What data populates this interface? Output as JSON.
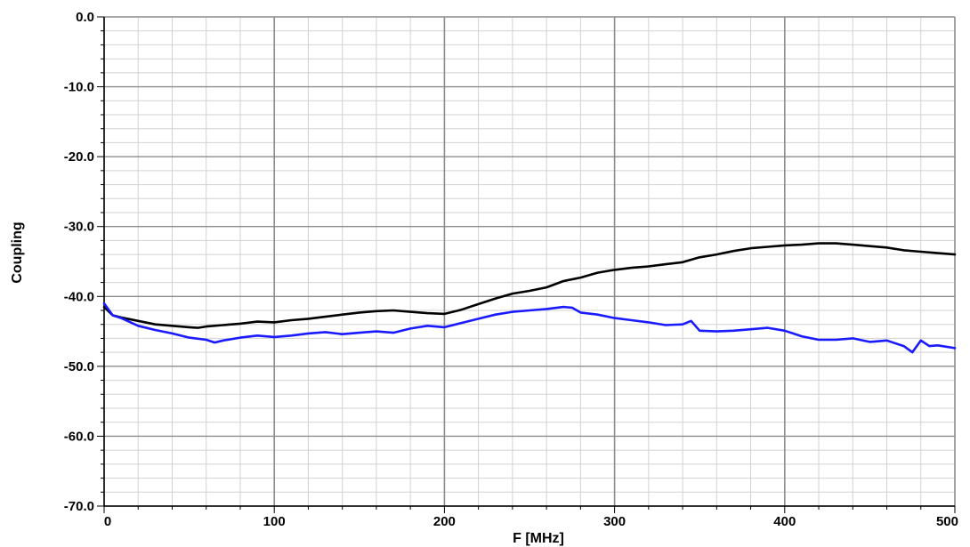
{
  "chart_data": {
    "type": "line",
    "title": "",
    "xlabel": "F [MHz]",
    "ylabel": "Coupling",
    "xlim": [
      0,
      500
    ],
    "ylim": [
      -70,
      0
    ],
    "x_ticks": [
      "0",
      "100",
      "200",
      "300",
      "400",
      "500"
    ],
    "y_ticks": [
      "0.0",
      "-10.0",
      "-20.0",
      "-30.0",
      "-40.0",
      "-50.0",
      "-60.0",
      "-70.0"
    ],
    "grid": true,
    "legend": "none",
    "series": [
      {
        "color": "#000000",
        "x": [
          0,
          5,
          10,
          20,
          30,
          40,
          50,
          55,
          60,
          70,
          80,
          90,
          100,
          110,
          120,
          130,
          140,
          150,
          160,
          170,
          180,
          190,
          200,
          210,
          220,
          230,
          240,
          250,
          260,
          270,
          280,
          290,
          300,
          310,
          320,
          330,
          340,
          350,
          360,
          370,
          380,
          390,
          400,
          410,
          420,
          430,
          440,
          450,
          460,
          470,
          480,
          490,
          500
        ],
        "y": [
          -41.5,
          -42.7,
          -43.0,
          -43.5,
          -44.0,
          -44.2,
          -44.4,
          -44.5,
          -44.3,
          -44.1,
          -43.9,
          -43.6,
          -43.7,
          -43.4,
          -43.2,
          -42.9,
          -42.6,
          -42.3,
          -42.1,
          -42.0,
          -42.2,
          -42.4,
          -42.5,
          -41.9,
          -41.1,
          -40.3,
          -39.6,
          -39.2,
          -38.7,
          -37.8,
          -37.3,
          -36.6,
          -36.2,
          -35.9,
          -35.7,
          -35.4,
          -35.1,
          -34.4,
          -34.0,
          -33.5,
          -33.1,
          -32.9,
          -32.7,
          -32.6,
          -32.4,
          -32.4,
          -32.6,
          -32.8,
          -33.0,
          -33.4,
          -33.6,
          -33.8,
          -34.0
        ]
      },
      {
        "color": "#1a1aff",
        "x": [
          0,
          5,
          10,
          20,
          30,
          40,
          50,
          60,
          65,
          70,
          80,
          90,
          100,
          110,
          120,
          130,
          140,
          150,
          160,
          170,
          180,
          190,
          200,
          210,
          220,
          230,
          240,
          250,
          260,
          270,
          275,
          280,
          290,
          300,
          310,
          320,
          330,
          340,
          345,
          350,
          360,
          370,
          380,
          390,
          400,
          410,
          420,
          430,
          440,
          450,
          460,
          470,
          475,
          480,
          485,
          490,
          500
        ],
        "y": [
          -41.0,
          -42.7,
          -43.1,
          -44.2,
          -44.8,
          -45.3,
          -45.9,
          -46.2,
          -46.6,
          -46.3,
          -45.9,
          -45.6,
          -45.8,
          -45.6,
          -45.3,
          -45.1,
          -45.4,
          -45.2,
          -45.0,
          -45.2,
          -44.6,
          -44.2,
          -44.4,
          -43.8,
          -43.2,
          -42.6,
          -42.2,
          -42.0,
          -41.8,
          -41.5,
          -41.6,
          -42.3,
          -42.6,
          -43.1,
          -43.4,
          -43.7,
          -44.1,
          -44.0,
          -43.5,
          -44.9,
          -45.0,
          -44.9,
          -44.7,
          -44.5,
          -44.9,
          -45.7,
          -46.2,
          -46.2,
          -46.0,
          -46.5,
          -46.3,
          -47.1,
          -48.0,
          -46.3,
          -47.1,
          -47.0,
          -47.4
        ]
      }
    ]
  }
}
